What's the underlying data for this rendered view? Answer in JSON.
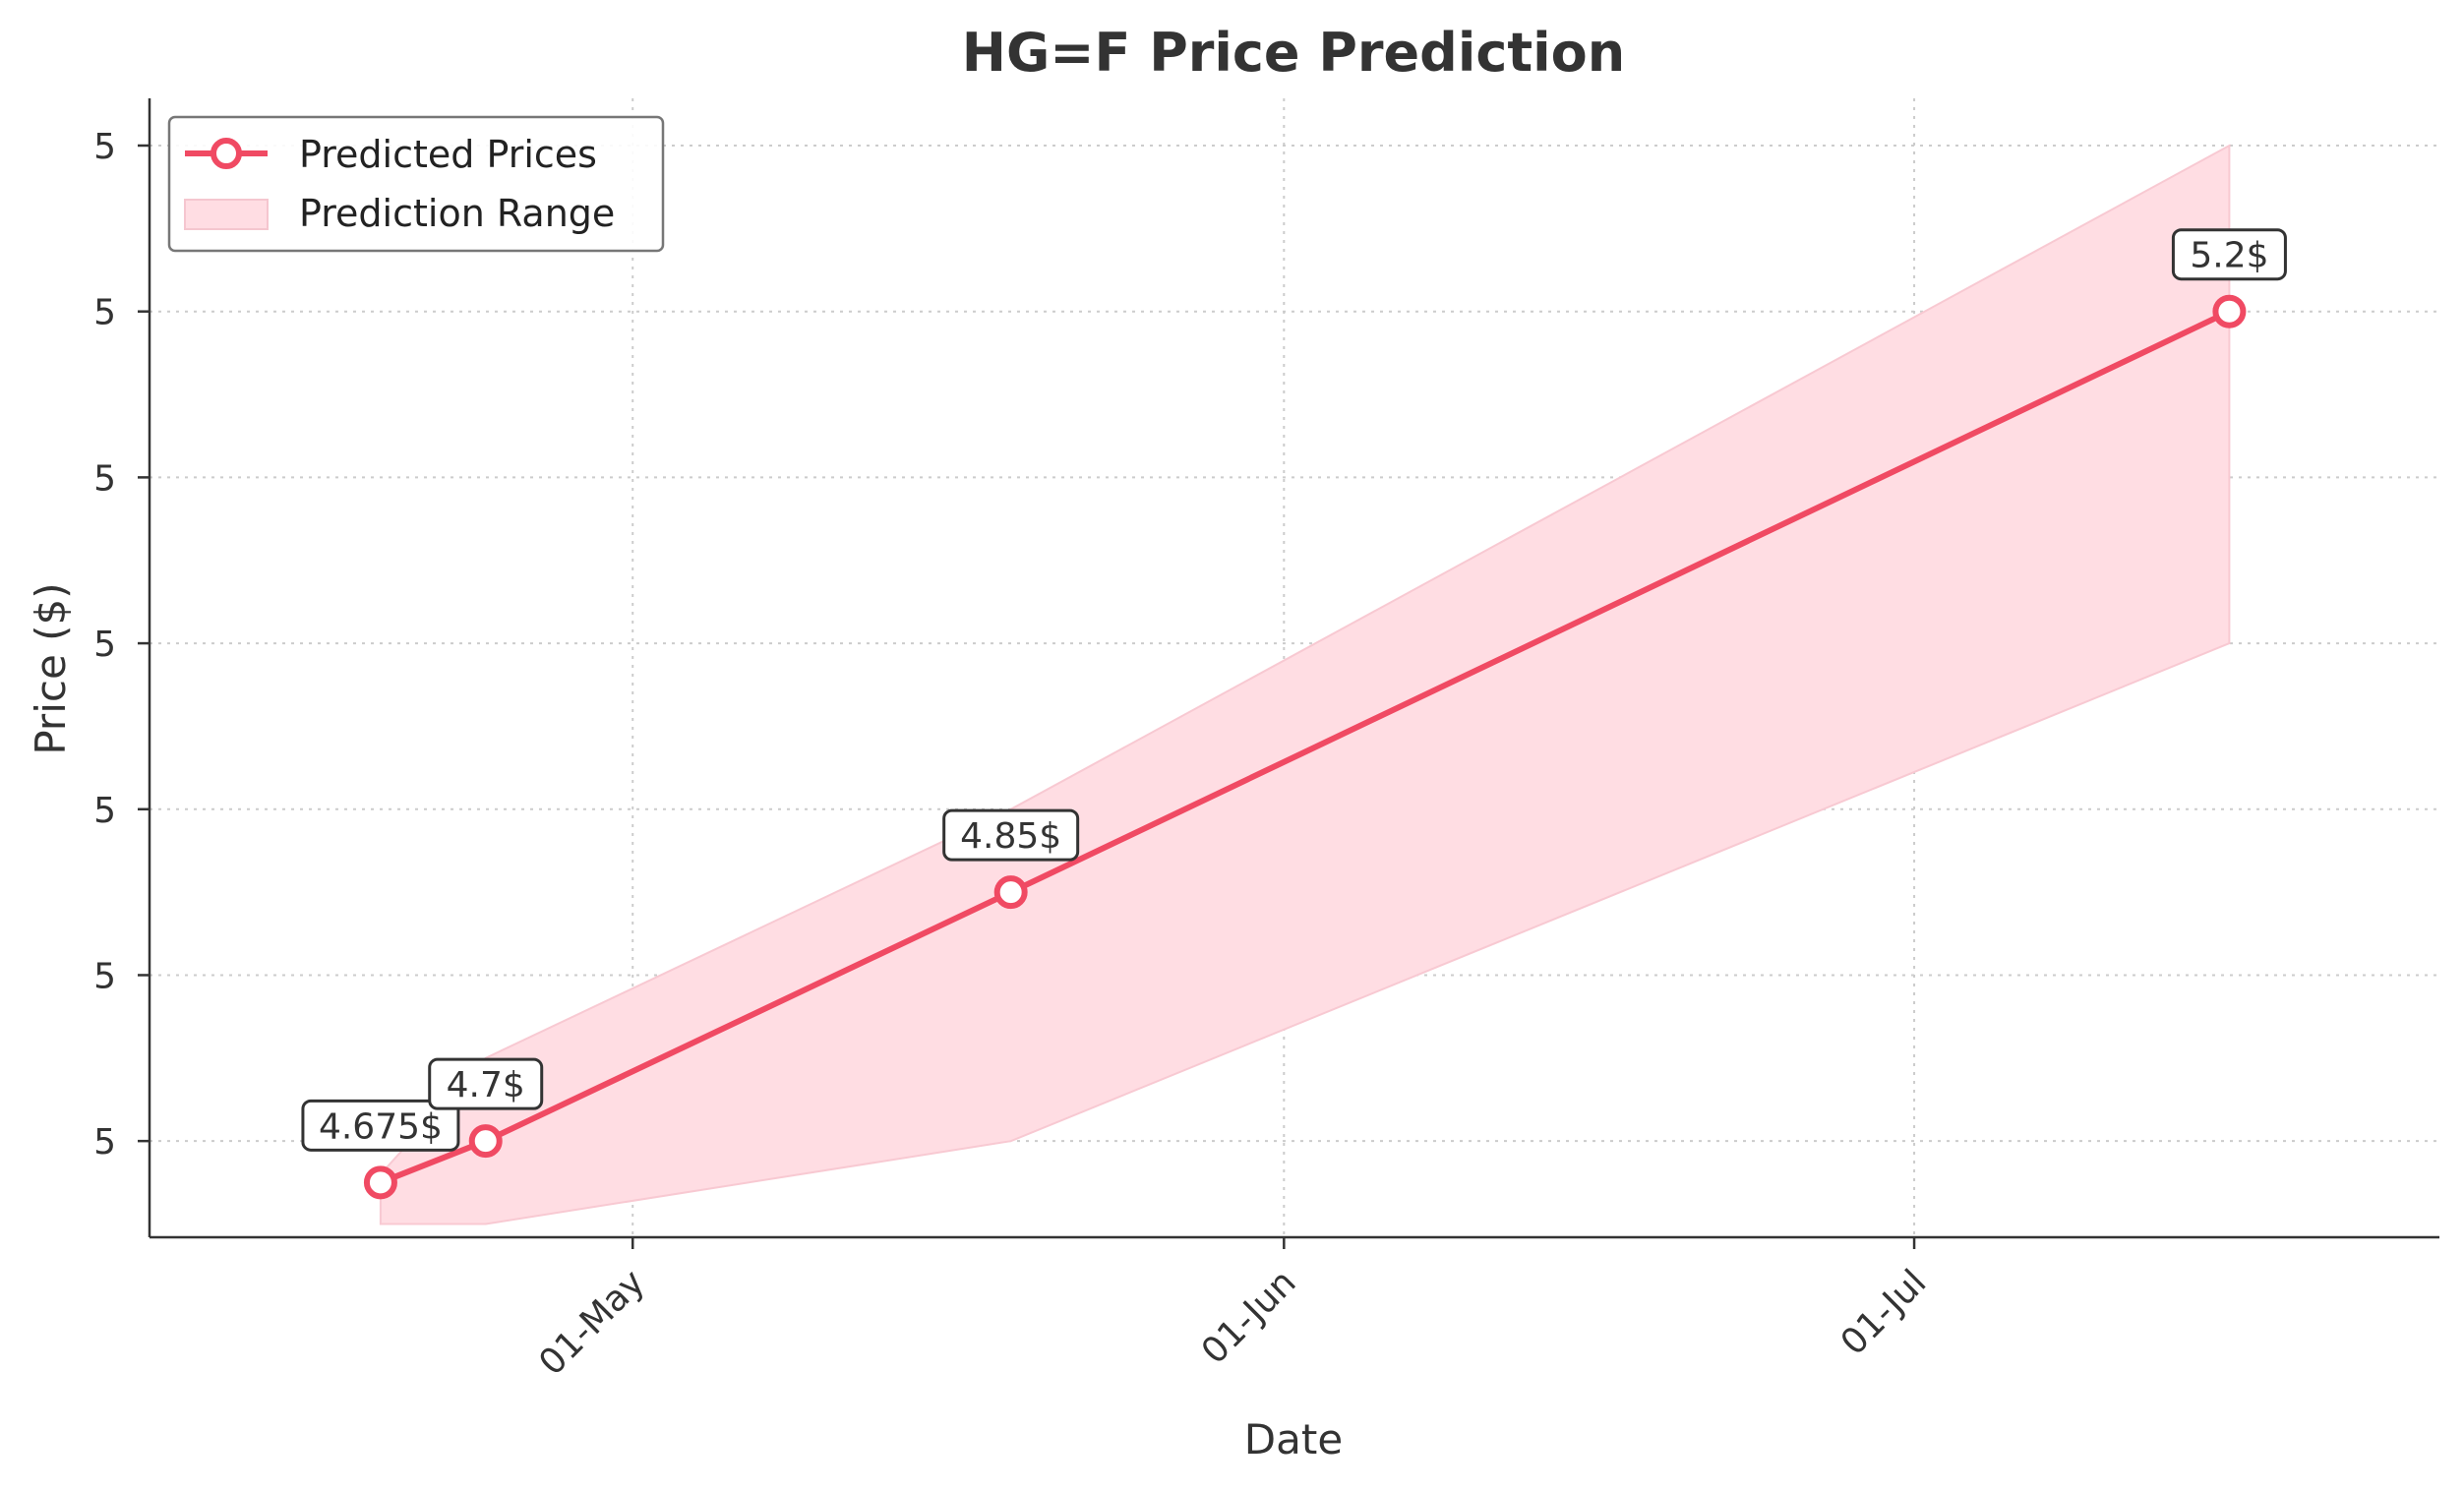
{
  "chart_data": {
    "type": "line",
    "title": "HG=F Price Prediction",
    "xlabel": "Date",
    "ylabel": "Price ($)",
    "x_dates": [
      "2024-04-19",
      "2024-04-24",
      "2024-05-19",
      "2024-07-16"
    ],
    "x_tick_dates": [
      "2024-05-01",
      "2024-06-01",
      "2024-07-01"
    ],
    "x_tick_labels": [
      "01-May",
      "01-Jun",
      "01-Jul"
    ],
    "ylim": [
      4.642,
      5.3
    ],
    "y_ticks": [
      4.7,
      4.8,
      4.9,
      5.0,
      5.1,
      5.2,
      5.3
    ],
    "y_tick_labels": [
      "5",
      "5",
      "5",
      "5",
      "5",
      "5",
      "5"
    ],
    "grid": true,
    "legend_position": "top-left",
    "series": [
      {
        "name": "Predicted Prices",
        "kind": "line",
        "color": "#f04a63",
        "values": [
          4.675,
          4.7,
          4.85,
          5.2
        ]
      },
      {
        "name": "Prediction Range",
        "kind": "band",
        "color": "#ffdde3",
        "lower": [
          4.65,
          4.65,
          4.7,
          5.0
        ],
        "upper": [
          4.68,
          4.75,
          4.9,
          5.3
        ]
      }
    ],
    "annotations": [
      "4.675$",
      "4.7$",
      "4.85$",
      "5.2$"
    ]
  }
}
